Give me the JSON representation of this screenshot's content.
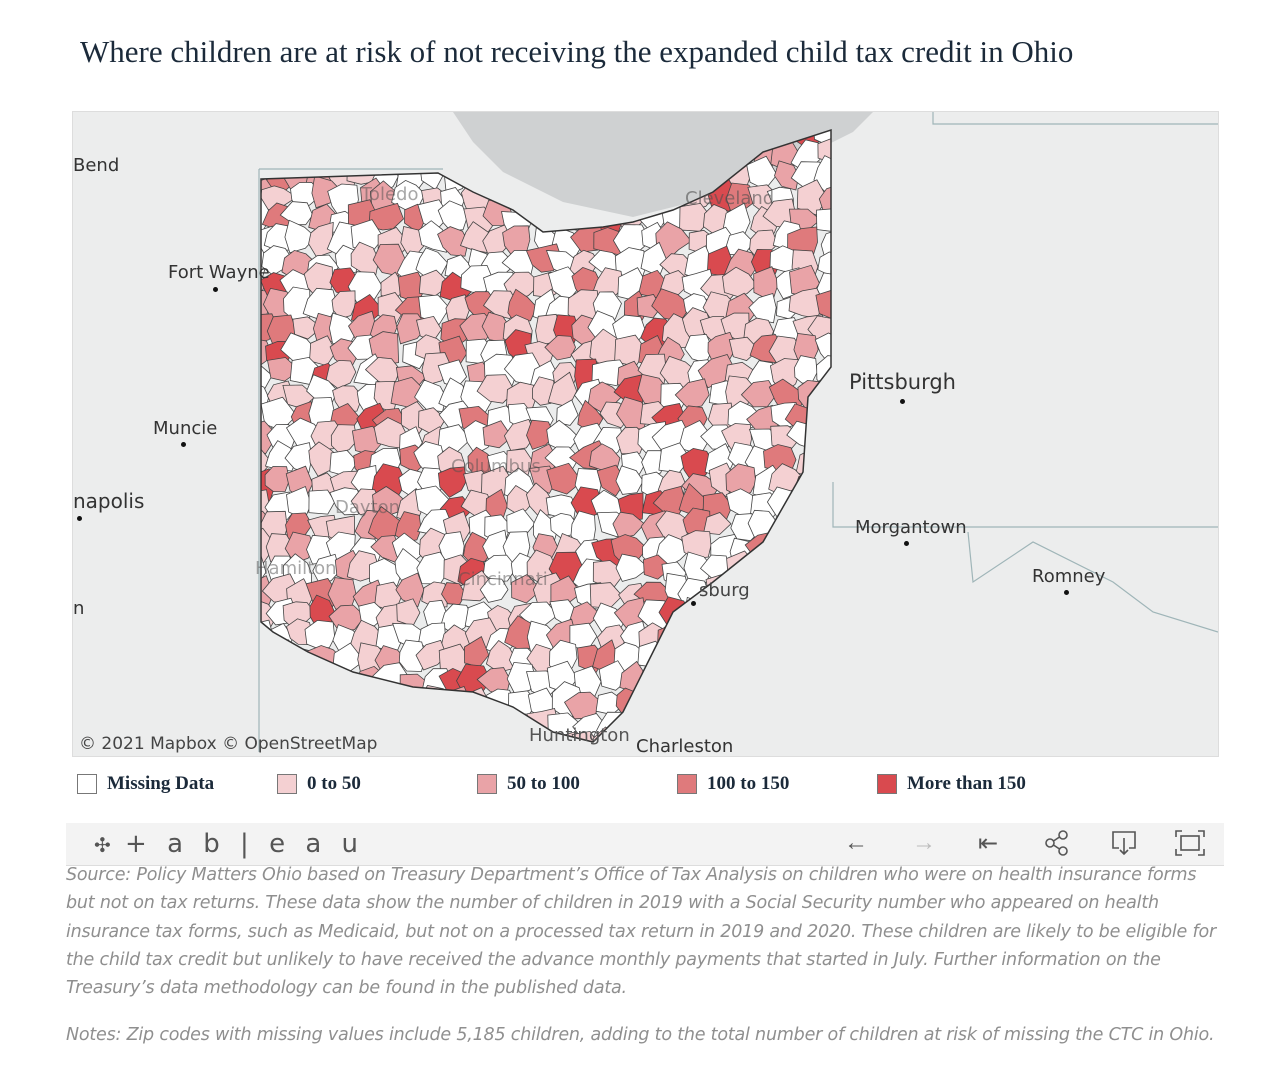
{
  "title": "Where children are at risk of not receiving the expanded child tax credit in Ohio",
  "map": {
    "cities": [
      {
        "name": "Bend"
      },
      {
        "name": "Fort Wayne"
      },
      {
        "name": "Muncie"
      },
      {
        "name": "napolis"
      },
      {
        "name": "n"
      },
      {
        "name": "Pittsburgh"
      },
      {
        "name": "Morgantown"
      },
      {
        "name": "Romney"
      },
      {
        "name": "Charleston"
      },
      {
        "name": "Huntington"
      },
      {
        "name": "sburg"
      },
      {
        "name": "Toledo"
      },
      {
        "name": "Cleveland"
      },
      {
        "name": "Columbus"
      },
      {
        "name": "Dayton"
      },
      {
        "name": "Cincinnati"
      },
      {
        "name": "Hamilton"
      }
    ],
    "attribution": "© 2021 Mapbox  © OpenStreetMap"
  },
  "legend": [
    {
      "label": "Missing Data",
      "color": "#ffffff"
    },
    {
      "label": "0 to 50",
      "color": "#f4d0d2"
    },
    {
      "label": "50 to 100",
      "color": "#e9a3a7"
    },
    {
      "label": "100 to 150",
      "color": "#df7a7c"
    },
    {
      "label": "More than 150",
      "color": "#d94a4f"
    }
  ],
  "toolbar": {
    "logo": "+ a b | e a u",
    "undo": "←",
    "redo": "→",
    "revert": "|←",
    "share": "share",
    "download": "download",
    "fullscreen": "fullscreen"
  },
  "source": "Source: Policy Matters Ohio based on Treasury Department’s Office of Tax Analysis on children who were on health insurance forms but not on tax returns. These data show the number of children in 2019 with a Social Security number who appeared on health insurance tax forms, such as Medicaid, but not on a processed tax return in 2019 and 2020. These children are likely to be eligible for the child tax credit but unlikely to have received the advance monthly payments that started in July. Further information on the Treasury’s data methodology can be found in the published data.",
  "notes": "Notes: Zip codes with missing values include 5,185 children, adding to the total number of children at risk of missing the CTC in Ohio."
}
